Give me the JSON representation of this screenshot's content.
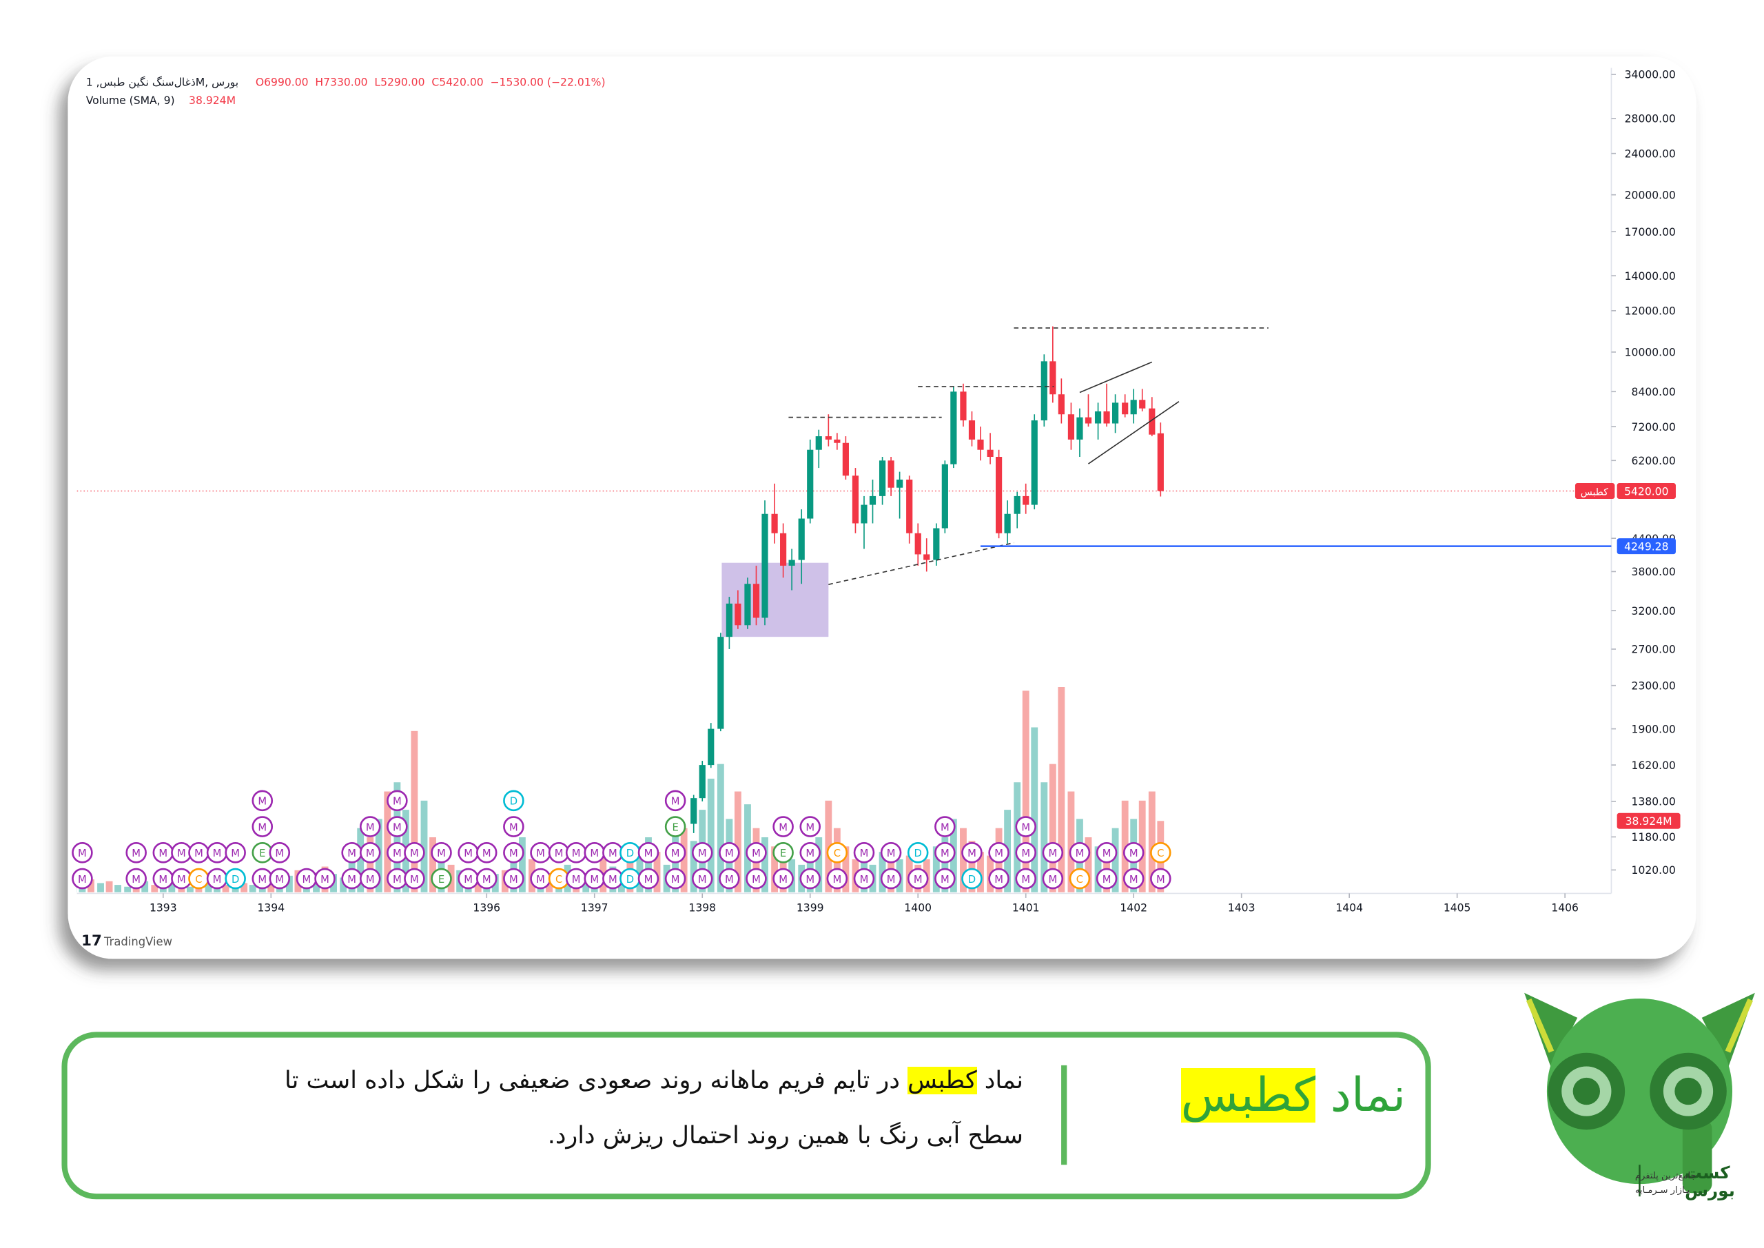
{
  "chart_data": {
    "type": "candlestick",
    "header": "ذغال‌سنگ نگین طبس, 1M, بورس",
    "ohlc": [
      "O6990.00",
      "H7330.00",
      "L5290.00",
      "C5420.00",
      "−1530.00 (−22.01%)"
    ],
    "volume_title": "Volume (SMA, 9)",
    "volume_sma": {
      "value": 38.924,
      "label": "38.924M"
    },
    "watermark": "TradingView",
    "log_scale": true,
    "grid": false,
    "up_color": "#089981",
    "down_color": "#f23645",
    "xlim": [
      1392.2,
      1406.43
    ],
    "xticks": [
      1393,
      1394,
      1396,
      1397,
      1398,
      1399,
      1400,
      1401,
      1402,
      1403,
      1404,
      1405,
      1406
    ],
    "ylim": [
      920,
      35000
    ],
    "yticks": [
      {
        "value": 34000,
        "label": "34000.00"
      },
      {
        "value": 28000,
        "label": "28000.00"
      },
      {
        "value": 24000,
        "label": "24000.00"
      },
      {
        "value": 20000,
        "label": "20000.00"
      },
      {
        "value": 17000,
        "label": "17000.00"
      },
      {
        "value": 14000,
        "label": "14000.00"
      },
      {
        "value": 12000,
        "label": "12000.00"
      },
      {
        "value": 10000,
        "label": "10000.00"
      },
      {
        "value": 8400,
        "label": "8400.00"
      },
      {
        "value": 7200,
        "label": "7200.00"
      },
      {
        "value": 6200,
        "label": "6200.00"
      },
      {
        "value": 4400,
        "label": "4400.00"
      },
      {
        "value": 3800,
        "label": "3800.00"
      },
      {
        "value": 3200,
        "label": "3200.00"
      },
      {
        "value": 2700,
        "label": "2700.00"
      },
      {
        "value": 2300,
        "label": "2300.00"
      },
      {
        "value": 1900,
        "label": "1900.00"
      },
      {
        "value": 1620,
        "label": "1620.00"
      },
      {
        "value": 1380,
        "label": "1380.00"
      },
      {
        "value": 1180,
        "label": "1180.00"
      },
      {
        "value": 1020,
        "label": "1020.00"
      }
    ],
    "candles": {
      "x": [
        1397.92,
        1398.0,
        1398.08,
        1398.17,
        1398.25,
        1398.33,
        1398.42,
        1398.5,
        1398.58,
        1398.67,
        1398.75,
        1398.83,
        1398.92,
        1399.0,
        1399.08,
        1399.17,
        1399.25,
        1399.33,
        1399.42,
        1399.5,
        1399.58,
        1399.67,
        1399.75,
        1399.83,
        1399.92,
        1400.0,
        1400.08,
        1400.17,
        1400.25,
        1400.33,
        1400.42,
        1400.5,
        1400.58,
        1400.67,
        1400.75,
        1400.83,
        1400.92,
        1401.0,
        1401.08,
        1401.17,
        1401.25,
        1401.33,
        1401.42,
        1401.5,
        1401.58,
        1401.67,
        1401.75,
        1401.83,
        1401.92,
        1402.0,
        1402.08,
        1402.17,
        1402.25
      ],
      "open": [
        1250,
        1400,
        1620,
        1900,
        2850,
        3300,
        3000,
        3600,
        3100,
        4900,
        4500,
        3900,
        4000,
        4800,
        6500,
        6900,
        6800,
        6700,
        5800,
        4700,
        5100,
        5300,
        6200,
        5500,
        5700,
        4500,
        4100,
        4000,
        4600,
        6100,
        8400,
        7400,
        6800,
        6500,
        6300,
        4500,
        4900,
        5300,
        5100,
        7400,
        9600,
        8300,
        7600,
        6800,
        7500,
        7300,
        7700,
        7300,
        8000,
        7600,
        8100,
        7800,
        6990
      ],
      "high": [
        1420,
        1650,
        1950,
        2900,
        3400,
        3500,
        3700,
        3900,
        5200,
        5600,
        4700,
        4200,
        5000,
        6800,
        7100,
        7600,
        7000,
        6900,
        6000,
        5300,
        5700,
        6300,
        6300,
        5900,
        5800,
        4700,
        4400,
        4700,
        6200,
        8600,
        8700,
        7700,
        7200,
        7000,
        6500,
        5200,
        5400,
        5600,
        7600,
        9900,
        11200,
        8900,
        8000,
        7800,
        8300,
        8000,
        8700,
        8300,
        8300,
        8500,
        8500,
        8200,
        7330
      ],
      "low": [
        1200,
        1380,
        1600,
        1880,
        2700,
        2950,
        2950,
        3000,
        3000,
        4300,
        3700,
        3500,
        3600,
        4700,
        6000,
        6600,
        6500,
        5700,
        4500,
        4200,
        4700,
        5100,
        5300,
        4800,
        4300,
        3900,
        3800,
        3900,
        4500,
        6000,
        7200,
        6600,
        6200,
        6100,
        4400,
        4300,
        4600,
        4900,
        5000,
        7200,
        8000,
        7300,
        6500,
        6300,
        7200,
        6800,
        7200,
        7000,
        7500,
        7300,
        7700,
        6900,
        5290
      ],
      "close": [
        1400,
        1620,
        1900,
        2850,
        3300,
        3000,
        3600,
        3100,
        4900,
        4500,
        3900,
        4000,
        4800,
        6500,
        6900,
        6800,
        6700,
        5800,
        4700,
        5100,
        5300,
        6200,
        5500,
        5700,
        4500,
        4100,
        4000,
        4600,
        6100,
        8400,
        7400,
        6800,
        6500,
        6300,
        4500,
        4900,
        5300,
        5100,
        7400,
        9600,
        8300,
        7600,
        6800,
        7500,
        7300,
        7700,
        7300,
        8000,
        7600,
        8100,
        7800,
        6950,
        5420
      ]
    },
    "volume": {
      "x": [
        1392.0,
        1392.08,
        1392.17,
        1392.25,
        1392.33,
        1392.42,
        1392.5,
        1392.58,
        1392.67,
        1392.75,
        1392.83,
        1392.92,
        1393.0,
        1393.08,
        1393.17,
        1393.25,
        1393.33,
        1393.42,
        1393.5,
        1393.58,
        1393.67,
        1393.75,
        1393.83,
        1393.92,
        1394.0,
        1394.08,
        1394.17,
        1394.25,
        1394.33,
        1394.42,
        1394.5,
        1394.58,
        1394.67,
        1394.75,
        1394.83,
        1394.92,
        1395.0,
        1395.08,
        1395.17,
        1395.25,
        1395.33,
        1395.42,
        1395.5,
        1395.58,
        1395.67,
        1395.75,
        1395.83,
        1395.92,
        1396.0,
        1396.08,
        1396.17,
        1396.25,
        1396.33,
        1396.42,
        1396.5,
        1396.58,
        1396.67,
        1396.75,
        1396.83,
        1396.92,
        1397.0,
        1397.08,
        1397.17,
        1397.25,
        1397.33,
        1397.42,
        1397.5,
        1397.58,
        1397.67,
        1397.75,
        1397.83,
        1397.92,
        1398.0,
        1398.08,
        1398.17,
        1398.25,
        1398.33,
        1398.42,
        1398.5,
        1398.58,
        1398.67,
        1398.75,
        1398.83,
        1398.92,
        1399.0,
        1399.08,
        1399.17,
        1399.25,
        1399.33,
        1399.42,
        1399.5,
        1399.58,
        1399.67,
        1399.75,
        1399.83,
        1399.92,
        1400.0,
        1400.08,
        1400.17,
        1400.25,
        1400.33,
        1400.42,
        1400.5,
        1400.58,
        1400.67,
        1400.75,
        1400.83,
        1400.92,
        1401.0,
        1401.08,
        1401.17,
        1401.25,
        1401.33,
        1401.42,
        1401.5,
        1401.58,
        1401.67,
        1401.75,
        1401.83,
        1401.92,
        1402.0,
        1402.08,
        1402.17,
        1402.25
      ],
      "values": [
        8,
        6,
        5,
        4,
        7,
        5,
        6,
        4,
        3,
        5,
        6,
        4,
        5,
        6,
        4,
        3,
        8,
        6,
        5,
        4,
        6,
        5,
        4,
        6,
        7,
        5,
        9,
        12,
        8,
        6,
        14,
        10,
        8,
        22,
        35,
        30,
        40,
        55,
        60,
        45,
        88,
        50,
        30,
        20,
        15,
        12,
        10,
        8,
        8,
        10,
        12,
        25,
        30,
        18,
        10,
        8,
        12,
        15,
        10,
        8,
        12,
        20,
        14,
        10,
        18,
        25,
        30,
        22,
        15,
        40,
        35,
        28,
        45,
        62,
        70,
        40,
        55,
        48,
        35,
        30,
        25,
        20,
        18,
        15,
        20,
        30,
        50,
        35,
        25,
        18,
        20,
        15,
        22,
        25,
        18,
        20,
        15,
        18,
        25,
        30,
        40,
        35,
        28,
        22,
        20,
        35,
        45,
        60,
        110,
        90,
        60,
        70,
        112,
        55,
        40,
        30,
        25,
        20,
        35,
        50,
        40,
        50,
        55,
        38.924
      ],
      "up": [
        1,
        0,
        1,
        1,
        0,
        1,
        0,
        1,
        1,
        0,
        1,
        0,
        1,
        1,
        0,
        1,
        0,
        1,
        1,
        0,
        1,
        0,
        1,
        1,
        0,
        1,
        1,
        0,
        1,
        1,
        0,
        1,
        1,
        1,
        1,
        0,
        1,
        0,
        1,
        1,
        0,
        1,
        0,
        1,
        0,
        1,
        1,
        0,
        1,
        1,
        0,
        1,
        1,
        0,
        1,
        0,
        1,
        1,
        0,
        1,
        1,
        0,
        1,
        1,
        0,
        1,
        1,
        0,
        1,
        1,
        0,
        1,
        1,
        1,
        1,
        1,
        0,
        1,
        0,
        1,
        0,
        0,
        1,
        1,
        1,
        1,
        0,
        0,
        0,
        0,
        1,
        1,
        1,
        0,
        1,
        0,
        0,
        0,
        1,
        1,
        1,
        0,
        0,
        0,
        0,
        0,
        1,
        1,
        0,
        1,
        1,
        0,
        0,
        0,
        1,
        0,
        1,
        0,
        1,
        0,
        1,
        0,
        0,
        0
      ],
      "up_color": "rgba(38,166,154,0.5)",
      "down_color": "rgba(239,83,80,0.5)"
    },
    "event_colors": {
      "M": "#9c27b0",
      "E": "#43a047",
      "D": "#00bcd4",
      "C": "#ff9800"
    },
    "events": [
      {
        "x": 1392.25,
        "labels": [
          "M",
          "M"
        ]
      },
      {
        "x": 1392.75,
        "labels": [
          "M",
          "M"
        ]
      },
      {
        "x": 1393.0,
        "labels": [
          "M",
          "M"
        ]
      },
      {
        "x": 1393.17,
        "labels": [
          "M",
          "M"
        ]
      },
      {
        "x": 1393.33,
        "labels": [
          "C",
          "M"
        ]
      },
      {
        "x": 1393.5,
        "labels": [
          "M",
          "M"
        ]
      },
      {
        "x": 1393.67,
        "labels": [
          "D",
          "M"
        ]
      },
      {
        "x": 1393.92,
        "labels": [
          "M",
          "E",
          "M",
          "M"
        ]
      },
      {
        "x": 1394.08,
        "labels": [
          "M",
          "M"
        ]
      },
      {
        "x": 1394.33,
        "labels": [
          "M"
        ]
      },
      {
        "x": 1394.5,
        "labels": [
          "M"
        ]
      },
      {
        "x": 1394.75,
        "labels": [
          "M",
          "M"
        ]
      },
      {
        "x": 1394.92,
        "labels": [
          "M",
          "M",
          "M"
        ]
      },
      {
        "x": 1395.17,
        "labels": [
          "M",
          "M",
          "M",
          "M"
        ]
      },
      {
        "x": 1395.33,
        "labels": [
          "M",
          "M"
        ]
      },
      {
        "x": 1395.58,
        "labels": [
          "E",
          "M"
        ]
      },
      {
        "x": 1395.83,
        "labels": [
          "M",
          "M"
        ]
      },
      {
        "x": 1396.0,
        "labels": [
          "M",
          "M"
        ]
      },
      {
        "x": 1396.25,
        "labels": [
          "M",
          "M",
          "M",
          "D"
        ]
      },
      {
        "x": 1396.5,
        "labels": [
          "M",
          "M"
        ]
      },
      {
        "x": 1396.67,
        "labels": [
          "C",
          "M"
        ]
      },
      {
        "x": 1396.83,
        "labels": [
          "M",
          "M"
        ]
      },
      {
        "x": 1397.0,
        "labels": [
          "M",
          "M"
        ]
      },
      {
        "x": 1397.17,
        "labels": [
          "M",
          "M"
        ]
      },
      {
        "x": 1397.33,
        "labels": [
          "D",
          "D"
        ]
      },
      {
        "x": 1397.5,
        "labels": [
          "M",
          "M"
        ]
      },
      {
        "x": 1397.75,
        "labels": [
          "M",
          "M",
          "E",
          "M"
        ]
      },
      {
        "x": 1398.0,
        "labels": [
          "M",
          "M"
        ]
      },
      {
        "x": 1398.25,
        "labels": [
          "M",
          "M"
        ]
      },
      {
        "x": 1398.5,
        "labels": [
          "M",
          "M"
        ]
      },
      {
        "x": 1398.75,
        "labels": [
          "M",
          "E",
          "M"
        ]
      },
      {
        "x": 1399.0,
        "labels": [
          "M",
          "M",
          "M"
        ]
      },
      {
        "x": 1399.25,
        "labels": [
          "M",
          "C"
        ]
      },
      {
        "x": 1399.5,
        "labels": [
          "M",
          "M"
        ]
      },
      {
        "x": 1399.75,
        "labels": [
          "M",
          "M"
        ]
      },
      {
        "x": 1400.0,
        "labels": [
          "M",
          "D"
        ]
      },
      {
        "x": 1400.25,
        "labels": [
          "M",
          "M",
          "M"
        ]
      },
      {
        "x": 1400.5,
        "labels": [
          "D",
          "M"
        ]
      },
      {
        "x": 1400.75,
        "labels": [
          "M",
          "M"
        ]
      },
      {
        "x": 1401.0,
        "labels": [
          "M",
          "M",
          "M"
        ]
      },
      {
        "x": 1401.25,
        "labels": [
          "M",
          "M"
        ]
      },
      {
        "x": 1401.5,
        "labels": [
          "C",
          "M"
        ]
      },
      {
        "x": 1401.75,
        "labels": [
          "M",
          "M"
        ]
      },
      {
        "x": 1402.0,
        "labels": [
          "M",
          "M"
        ]
      },
      {
        "x": 1402.25,
        "labels": [
          "M",
          "C"
        ]
      }
    ],
    "zone": {
      "x": [
        1398.18,
        1399.17
      ],
      "price": [
        2850,
        3950
      ],
      "color": "rgba(149,117,205,0.45)"
    },
    "dashed_lines": [
      {
        "x": [
          1398.8,
          1400.22
        ],
        "price": [
          7500,
          7500
        ]
      },
      {
        "x": [
          1400.0,
          1401.26
        ],
        "price": [
          8590,
          8590
        ]
      },
      {
        "x": [
          1400.89,
          1403.25
        ],
        "price": [
          11120,
          11120
        ]
      },
      {
        "x": [
          1399.17,
          1400.89
        ],
        "price": [
          3590,
          4315
        ]
      }
    ],
    "trend_lines": [
      {
        "x": [
          1401.5,
          1402.17
        ],
        "price": [
          8370,
          9570
        ]
      },
      {
        "x": [
          1401.58,
          1402.42
        ],
        "price": [
          6110,
          8040
        ]
      }
    ],
    "support": {
      "value": 4249.28,
      "x_start": 1400.58,
      "color": "#2962ff"
    },
    "last_price": {
      "value": 5420,
      "label": "5420.00",
      "symbol": "کطبس",
      "color": "#f23645"
    }
  },
  "caption": {
    "title_prefix": "نماد",
    "title_symbol": "کطبس",
    "line1_prefix": "نماد",
    "line1_symbol": "کطبس",
    "line1_rest": "در تایم فریم ماهانه روند صعودی ضعیفی را شکل داده است تا",
    "line2": "سطح آبی رنگ با همین روند احتمال ریزش دارد."
  },
  "logo": {
    "brand_top": "کست",
    "brand_bottom": "بورس",
    "tagline_top": "جامع‌ترین پلتفرم",
    "tagline_bottom": "بـازار سـرمـایه"
  }
}
